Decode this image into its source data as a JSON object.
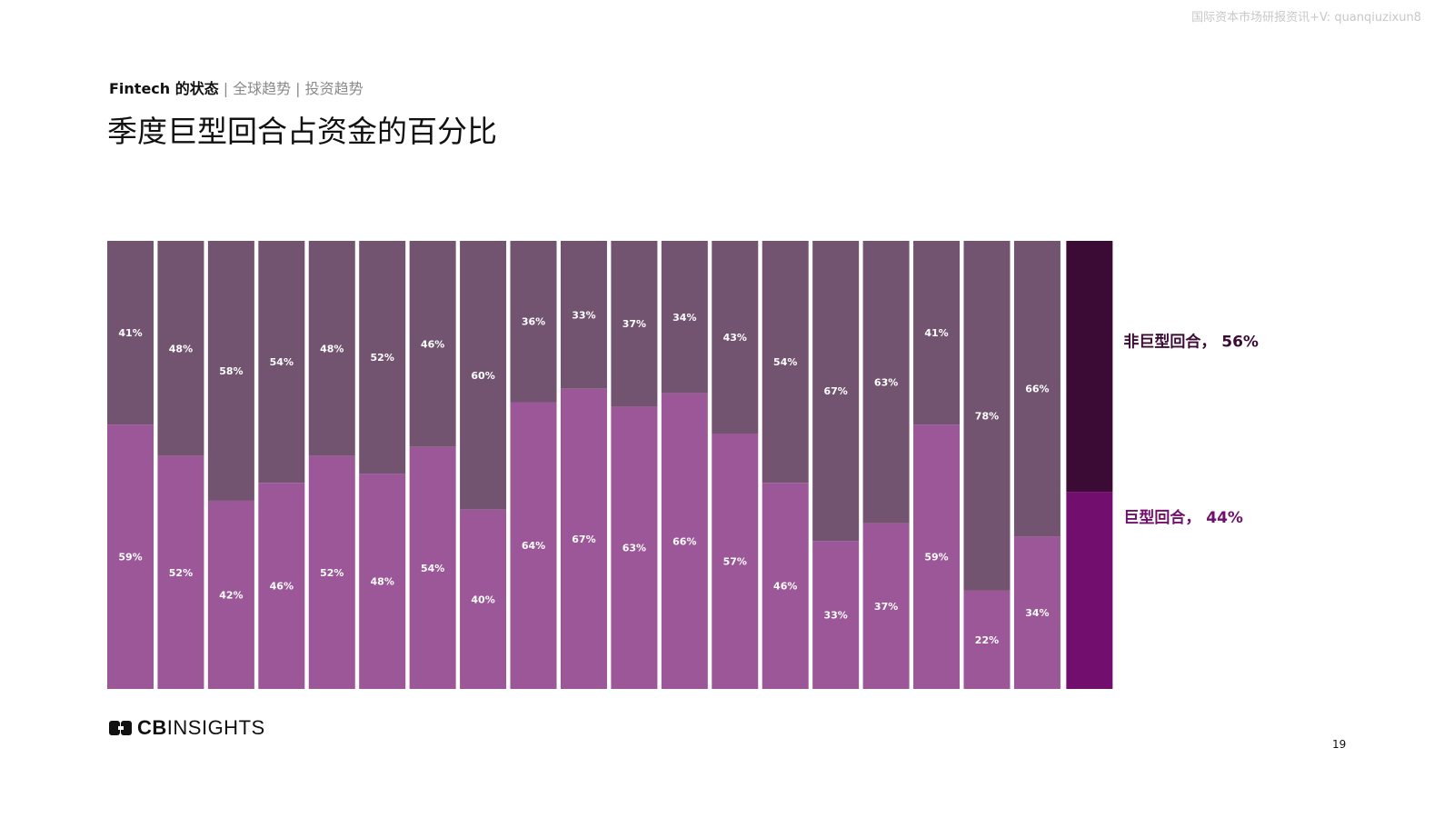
{
  "watermark": "国际资本市场研报资讯+V: quanqiuzixun8",
  "breadcrumb": {
    "section": "Fintech 的状态",
    "sep1": "|",
    "item1": "全球趋势",
    "sep2": "|",
    "item2": "投资趋势"
  },
  "title": "季度巨型回合占资金的百分比",
  "colors": {
    "mega_bar": "#9b5797",
    "non_mega_bar": "#735470",
    "mega_summary": "#720f6e",
    "non_mega_summary": "#3c0b35",
    "mega_legend_text": "#720f6e",
    "non_mega_legend_text": "#3c0b35"
  },
  "chart_data": {
    "type": "bar",
    "stacked": true,
    "percent_stacked": true,
    "title": "季度巨型回合占资金的百分比",
    "xlabel": "",
    "ylabel": "",
    "ylim": [
      0,
      100
    ],
    "grid": false,
    "series": [
      {
        "name": "巨型回合",
        "values": [
          59,
          52,
          42,
          46,
          52,
          48,
          54,
          40,
          64,
          67,
          63,
          66,
          57,
          46,
          33,
          37,
          59,
          22,
          34
        ],
        "labels": [
          "59%",
          "52%",
          "42%",
          "46%",
          "52%",
          "48%",
          "54%",
          "40%",
          "64%",
          "67%",
          "63%",
          "66%",
          "57%",
          "46%",
          "33%",
          "37%",
          "59%",
          "22%",
          "34%"
        ]
      },
      {
        "name": "非巨型回合",
        "values": [
          41,
          48,
          58,
          54,
          48,
          52,
          46,
          60,
          36,
          33,
          37,
          34,
          43,
          54,
          67,
          63,
          41,
          78,
          66
        ],
        "labels": [
          "41%",
          "48%",
          "58%",
          "54%",
          "48%",
          "52%",
          "46%",
          "60%",
          "36%",
          "33%",
          "37%",
          "34%",
          "43%",
          "54%",
          "67%",
          "63%",
          "41%",
          "78%",
          "66%"
        ]
      }
    ],
    "summary": {
      "mega_value": 44,
      "non_mega_value": 56,
      "mega_label": "巨型回合，  44%",
      "non_mega_label": "非巨型回合，  56%"
    }
  },
  "footer": {
    "logo_prefix": "CB",
    "logo_suffix": "INSIGHTS",
    "page_number": "19"
  }
}
